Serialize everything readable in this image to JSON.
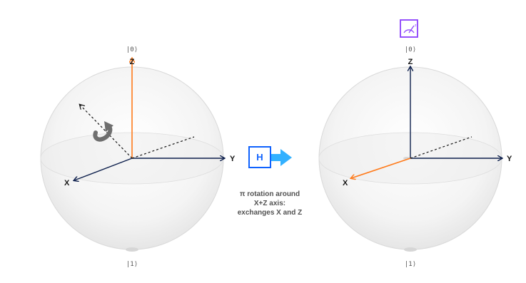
{
  "colors": {
    "axis_dark": "#0d1f4c",
    "axis_highlight": "#ff7a1a",
    "sphere_edge": "#d9d9d9",
    "gate_blue": "#0f62fe",
    "gate_arrow": "#33b1ff",
    "measure_purple": "#8a3ffc",
    "rotation_icon": "#6f6f6f"
  },
  "left_sphere": {
    "ket_top": "|0⟩",
    "ket_bottom": "|1⟩",
    "axis_z": "Z",
    "axis_x": "X",
    "axis_y": "Y",
    "highlighted_axis": "Z",
    "rotation_icon": "rotation-arrow-icon"
  },
  "gate": {
    "label": "H",
    "arrow_icon": "right-arrow-icon"
  },
  "caption": {
    "line1": "π rotation around",
    "line2": "X+Z axis:",
    "line3": "exchanges X and Z"
  },
  "right_sphere": {
    "ket_top": "|0⟩",
    "ket_bottom": "|1⟩",
    "axis_z": "Z",
    "axis_x": "X",
    "axis_y": "Y",
    "highlighted_axis": "X",
    "measure_icon": "measurement-gauge-icon"
  }
}
